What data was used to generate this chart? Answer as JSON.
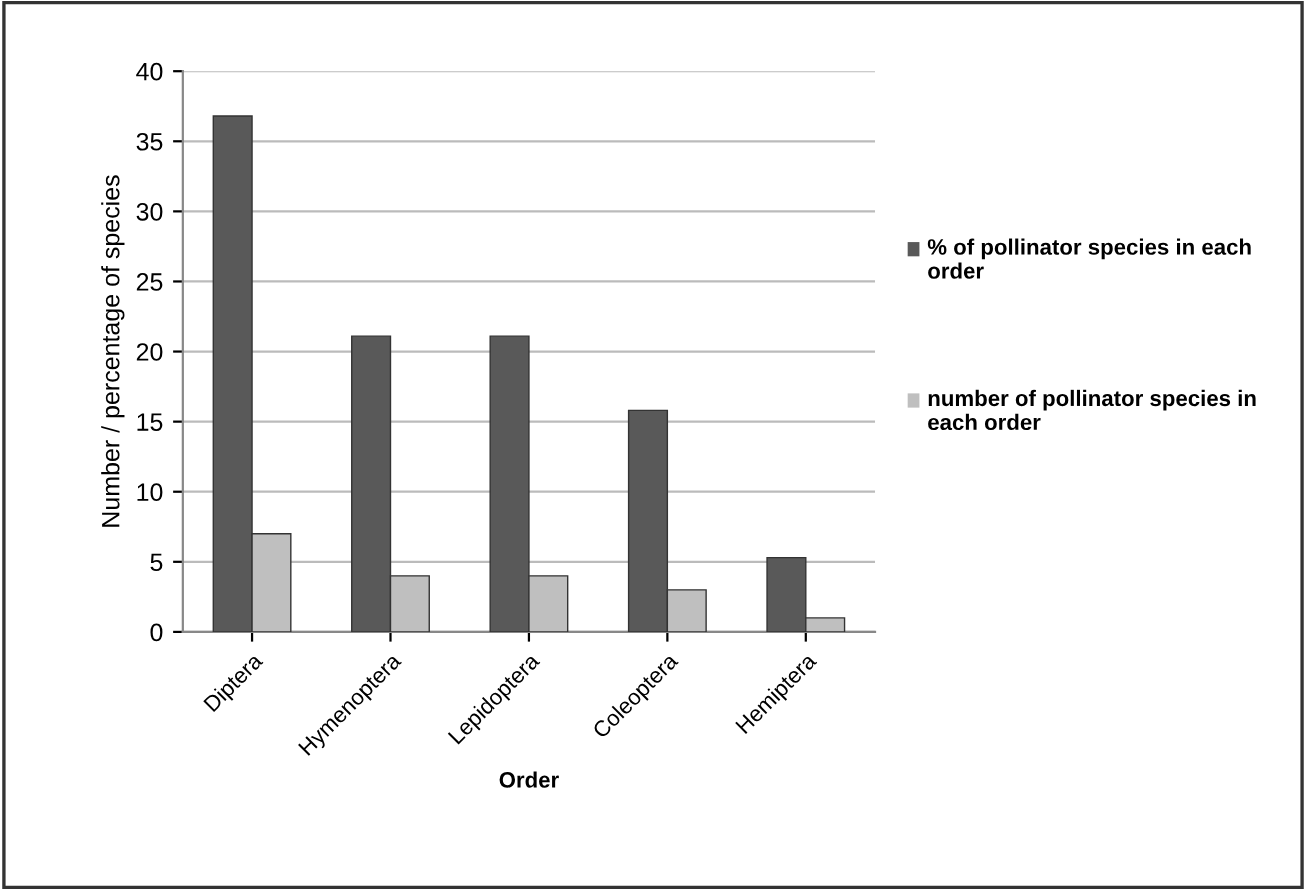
{
  "chart_data": {
    "type": "bar",
    "xlabel": "Order",
    "ylabel": "Number / percentage of species",
    "categories": [
      "Diptera",
      "Hymenoptera",
      "Lepidoptera",
      "Coleoptera",
      "Hemiptera"
    ],
    "series": [
      {
        "name": "% of pollinator species in each order",
        "color": "#595959",
        "values": [
          36.8,
          21.1,
          21.1,
          15.8,
          5.3
        ]
      },
      {
        "name": "number of pollinator species in each order",
        "color": "#bfbfbf",
        "values": [
          7,
          4,
          4,
          3,
          1
        ]
      }
    ],
    "ylim": [
      0,
      40
    ],
    "yticks": [
      0,
      5,
      10,
      15,
      20,
      25,
      30,
      35,
      40
    ],
    "grid": "y",
    "legend": "right"
  }
}
